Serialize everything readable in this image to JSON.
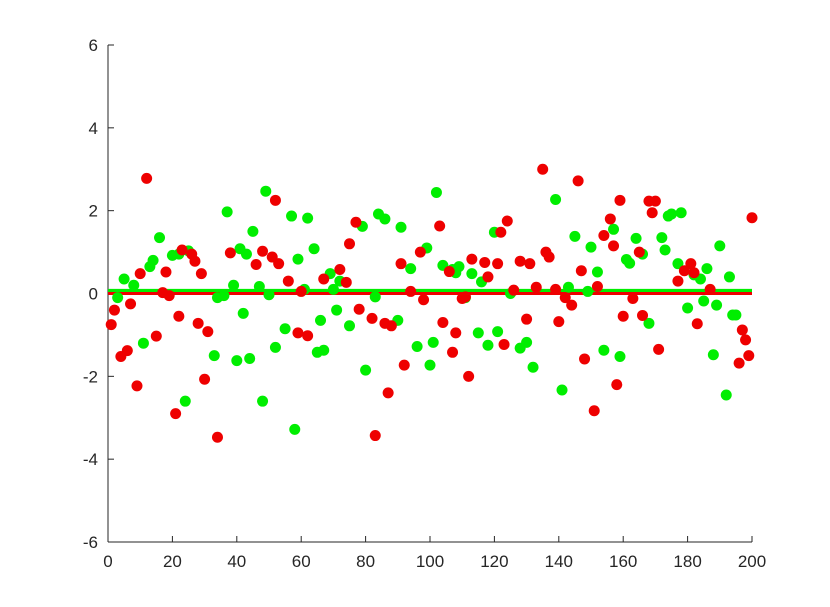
{
  "chart_data": {
    "type": "scatter",
    "xlim": [
      0,
      200
    ],
    "ylim": [
      -6,
      6
    ],
    "xticks": [
      "0",
      "20",
      "40",
      "60",
      "80",
      "100",
      "120",
      "140",
      "160",
      "180",
      "200"
    ],
    "yticks": [
      "6",
      "4",
      "2",
      "0",
      "-2",
      "-4",
      "-6"
    ],
    "grid": false,
    "series": [
      {
        "color": "#00ee00",
        "mean": 0.05,
        "points": [
          [
            3,
            -0.1
          ],
          [
            5,
            0.35
          ],
          [
            8,
            0.2
          ],
          [
            11,
            -1.2
          ],
          [
            13,
            0.65
          ],
          [
            14,
            0.8
          ],
          [
            16,
            1.35
          ],
          [
            20,
            0.92
          ],
          [
            22,
            0.95
          ],
          [
            24,
            -2.6
          ],
          [
            25,
            1.03
          ],
          [
            33,
            -1.5
          ],
          [
            34,
            -0.1
          ],
          [
            36,
            -0.05
          ],
          [
            37,
            1.97
          ],
          [
            39,
            0.2
          ],
          [
            40,
            -1.62
          ],
          [
            41,
            1.08
          ],
          [
            42,
            -0.48
          ],
          [
            43,
            0.95
          ],
          [
            44,
            -1.57
          ],
          [
            45,
            1.5
          ],
          [
            47,
            0.17
          ],
          [
            48,
            -2.6
          ],
          [
            49,
            2.47
          ],
          [
            50,
            -0.03
          ],
          [
            52,
            -1.3
          ],
          [
            55,
            -0.85
          ],
          [
            57,
            1.87
          ],
          [
            58,
            -3.28
          ],
          [
            59,
            0.83
          ],
          [
            61,
            0.1
          ],
          [
            62,
            1.82
          ],
          [
            64,
            1.08
          ],
          [
            65,
            -1.42
          ],
          [
            66,
            -0.65
          ],
          [
            67,
            -1.37
          ],
          [
            69,
            0.48
          ],
          [
            70,
            0.1
          ],
          [
            71,
            -0.4
          ],
          [
            72,
            0.3
          ],
          [
            75,
            -0.78
          ],
          [
            79,
            1.62
          ],
          [
            80,
            -1.85
          ],
          [
            83,
            -0.08
          ],
          [
            84,
            1.92
          ],
          [
            86,
            1.8
          ],
          [
            90,
            -0.65
          ],
          [
            91,
            1.6
          ],
          [
            94,
            0.6
          ],
          [
            96,
            -1.28
          ],
          [
            99,
            1.1
          ],
          [
            100,
            -1.73
          ],
          [
            101,
            -1.18
          ],
          [
            102,
            2.44
          ],
          [
            104,
            0.68
          ],
          [
            107,
            0.58
          ],
          [
            108,
            0.5
          ],
          [
            109,
            0.65
          ],
          [
            111,
            -0.1
          ],
          [
            113,
            0.48
          ],
          [
            115,
            -0.95
          ],
          [
            116,
            0.28
          ],
          [
            118,
            -1.25
          ],
          [
            120,
            1.48
          ],
          [
            121,
            -0.92
          ],
          [
            125,
            0.0
          ],
          [
            128,
            -1.32
          ],
          [
            130,
            -1.18
          ],
          [
            132,
            -1.78
          ],
          [
            139,
            2.27
          ],
          [
            141,
            -2.33
          ],
          [
            143,
            0.15
          ],
          [
            145,
            1.38
          ],
          [
            149,
            0.05
          ],
          [
            150,
            1.12
          ],
          [
            152,
            0.52
          ],
          [
            154,
            -1.37
          ],
          [
            157,
            1.55
          ],
          [
            159,
            -1.52
          ],
          [
            161,
            0.82
          ],
          [
            162,
            0.73
          ],
          [
            164,
            1.33
          ],
          [
            166,
            0.95
          ],
          [
            168,
            -0.72
          ],
          [
            172,
            1.35
          ],
          [
            173,
            1.05
          ],
          [
            174,
            1.87
          ],
          [
            175,
            1.92
          ],
          [
            177,
            0.72
          ],
          [
            178,
            1.95
          ],
          [
            180,
            -0.35
          ],
          [
            182,
            0.45
          ],
          [
            184,
            0.35
          ],
          [
            185,
            -0.18
          ],
          [
            186,
            0.6
          ],
          [
            188,
            -1.48
          ],
          [
            189,
            -0.28
          ],
          [
            190,
            1.15
          ],
          [
            192,
            -2.45
          ],
          [
            193,
            0.4
          ],
          [
            194,
            -0.52
          ],
          [
            195,
            -0.52
          ]
        ]
      },
      {
        "color": "#ee0000",
        "mean": 0.0,
        "points": [
          [
            1,
            -0.75
          ],
          [
            2,
            -0.4
          ],
          [
            4,
            -1.52
          ],
          [
            6,
            -1.38
          ],
          [
            7,
            -0.25
          ],
          [
            9,
            -2.23
          ],
          [
            10,
            0.48
          ],
          [
            12,
            2.78
          ],
          [
            15,
            -1.03
          ],
          [
            17,
            0.02
          ],
          [
            18,
            0.52
          ],
          [
            19,
            -0.05
          ],
          [
            21,
            -2.9
          ],
          [
            22,
            -0.55
          ],
          [
            23,
            1.05
          ],
          [
            26,
            0.95
          ],
          [
            27,
            0.78
          ],
          [
            28,
            -0.72
          ],
          [
            29,
            0.48
          ],
          [
            30,
            -2.07
          ],
          [
            31,
            -0.92
          ],
          [
            34,
            -3.47
          ],
          [
            38,
            0.98
          ],
          [
            46,
            0.7
          ],
          [
            48,
            1.02
          ],
          [
            51,
            0.88
          ],
          [
            52,
            2.25
          ],
          [
            53,
            0.72
          ],
          [
            56,
            0.3
          ],
          [
            59,
            -0.95
          ],
          [
            60,
            0.05
          ],
          [
            62,
            -1.02
          ],
          [
            67,
            0.35
          ],
          [
            72,
            0.58
          ],
          [
            74,
            0.27
          ],
          [
            75,
            1.2
          ],
          [
            77,
            1.72
          ],
          [
            78,
            -0.38
          ],
          [
            82,
            -0.6
          ],
          [
            83,
            -3.43
          ],
          [
            86,
            -0.72
          ],
          [
            87,
            -2.4
          ],
          [
            88,
            -0.78
          ],
          [
            91,
            0.72
          ],
          [
            92,
            -1.73
          ],
          [
            94,
            0.05
          ],
          [
            97,
            1.0
          ],
          [
            98,
            -0.15
          ],
          [
            103,
            1.63
          ],
          [
            104,
            -0.7
          ],
          [
            106,
            0.53
          ],
          [
            107,
            -1.42
          ],
          [
            108,
            -0.95
          ],
          [
            110,
            -0.12
          ],
          [
            111,
            -0.08
          ],
          [
            112,
            -2.0
          ],
          [
            113,
            0.83
          ],
          [
            117,
            0.75
          ],
          [
            118,
            0.4
          ],
          [
            121,
            0.72
          ],
          [
            122,
            1.48
          ],
          [
            123,
            -1.23
          ],
          [
            124,
            1.75
          ],
          [
            126,
            0.08
          ],
          [
            128,
            0.78
          ],
          [
            130,
            -0.62
          ],
          [
            131,
            0.72
          ],
          [
            133,
            0.15
          ],
          [
            135,
            3.0
          ],
          [
            136,
            1.0
          ],
          [
            137,
            0.88
          ],
          [
            139,
            0.1
          ],
          [
            140,
            -0.68
          ],
          [
            142,
            -0.1
          ],
          [
            144,
            -0.28
          ],
          [
            146,
            2.72
          ],
          [
            147,
            0.55
          ],
          [
            148,
            -1.58
          ],
          [
            151,
            -2.83
          ],
          [
            152,
            0.17
          ],
          [
            154,
            1.4
          ],
          [
            156,
            1.8
          ],
          [
            157,
            1.15
          ],
          [
            158,
            -2.2
          ],
          [
            159,
            2.25
          ],
          [
            160,
            -0.55
          ],
          [
            163,
            -0.12
          ],
          [
            165,
            1.0
          ],
          [
            166,
            -0.53
          ],
          [
            168,
            2.23
          ],
          [
            169,
            1.95
          ],
          [
            170,
            2.23
          ],
          [
            171,
            -1.35
          ],
          [
            177,
            0.3
          ],
          [
            179,
            0.55
          ],
          [
            181,
            0.72
          ],
          [
            182,
            0.5
          ],
          [
            183,
            -0.73
          ],
          [
            187,
            0.1
          ],
          [
            196,
            -1.68
          ],
          [
            197,
            -0.88
          ],
          [
            198,
            -1.12
          ],
          [
            199,
            -1.5
          ],
          [
            200,
            1.83
          ]
        ]
      }
    ]
  }
}
